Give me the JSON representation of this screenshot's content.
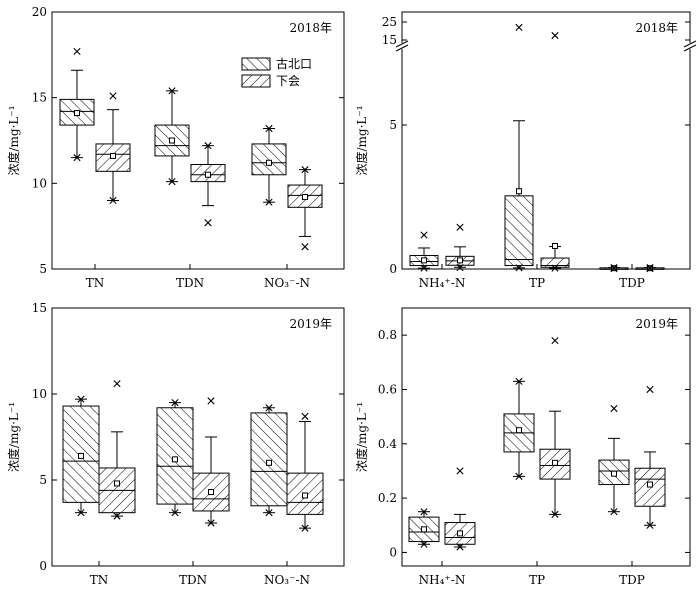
{
  "legend": {
    "items": [
      {
        "label": "古北口",
        "pattern": "hatch-a"
      },
      {
        "label": "下会",
        "pattern": "hatch-b"
      }
    ]
  },
  "chart_data": [
    {
      "type": "box",
      "panel": "top-left",
      "title": "2018年",
      "ylabel": "浓度/mg·L⁻¹",
      "ylim": [
        5,
        20
      ],
      "yticks": [
        "5",
        "10",
        "15",
        "20"
      ],
      "categories": [
        "TN",
        "TDN",
        "NO₃⁻-N"
      ],
      "series": [
        {
          "name": "古北口",
          "pattern": "hatch-a",
          "boxes": [
            {
              "min": 11.5,
              "q1": 13.4,
              "median": 14.2,
              "q3": 14.9,
              "max": 16.6,
              "mean": 14.1,
              "extremes": [
                11.5,
                17.7
              ]
            },
            {
              "min": 10.1,
              "q1": 11.6,
              "median": 12.2,
              "q3": 13.4,
              "max": 15.4,
              "mean": 12.5,
              "extremes": [
                10.1,
                15.4
              ]
            },
            {
              "min": 8.9,
              "q1": 10.5,
              "median": 11.2,
              "q3": 12.3,
              "max": 13.2,
              "mean": 11.2,
              "extremes": [
                8.9,
                13.2
              ]
            }
          ]
        },
        {
          "name": "下会",
          "pattern": "hatch-b",
          "boxes": [
            {
              "min": 9.0,
              "q1": 10.7,
              "median": 11.7,
              "q3": 12.3,
              "max": 14.3,
              "mean": 11.6,
              "extremes": [
                9.0,
                15.1
              ]
            },
            {
              "min": 8.7,
              "q1": 10.1,
              "median": 10.5,
              "q3": 11.1,
              "max": 12.2,
              "mean": 10.5,
              "extremes": [
                7.7,
                12.2
              ]
            },
            {
              "min": 6.9,
              "q1": 8.6,
              "median": 9.3,
              "q3": 9.9,
              "max": 10.8,
              "mean": 9.2,
              "extremes": [
                6.3,
                10.8
              ]
            }
          ]
        }
      ]
    },
    {
      "type": "box",
      "panel": "top-right",
      "title": "2018年",
      "ylabel": "浓度/mg·L⁻¹",
      "ylim": [
        0,
        25
      ],
      "axis_break": [
        5,
        15
      ],
      "yticks": [
        "0",
        "5",
        "15",
        "25"
      ],
      "categories": [
        "NH₄⁺-N",
        "TP",
        "TDP"
      ],
      "series": [
        {
          "name": "古北口",
          "pattern": "hatch-a",
          "boxes": [
            {
              "min": 0.03,
              "q1": 0.12,
              "median": 0.26,
              "q3": 0.47,
              "max": 0.73,
              "mean": 0.3,
              "extremes": [
                0.03,
                1.18
              ]
            },
            {
              "min": 0.04,
              "q1": 0.12,
              "median": 0.33,
              "q3": 2.54,
              "max": 5.5,
              "mean": 2.7,
              "extremes": [
                0.04,
                22.0
              ]
            },
            {
              "min": 0.01,
              "q1": 0.02,
              "median": 0.03,
              "q3": 0.04,
              "max": 0.05,
              "mean": 0.03,
              "extremes": [
                0.01,
                0.05
              ]
            }
          ]
        },
        {
          "name": "下会",
          "pattern": "hatch-b",
          "boxes": [
            {
              "min": 0.06,
              "q1": 0.13,
              "median": 0.28,
              "q3": 0.44,
              "max": 0.77,
              "mean": 0.3,
              "extremes": [
                0.05,
                1.45
              ]
            },
            {
              "min": 0.03,
              "q1": 0.06,
              "median": 0.12,
              "q3": 0.38,
              "max": 0.78,
              "mean": 0.8,
              "extremes": [
                0.03,
                17.5
              ]
            },
            {
              "min": 0.01,
              "q1": 0.02,
              "median": 0.03,
              "q3": 0.04,
              "max": 0.05,
              "mean": 0.03,
              "extremes": [
                0.01,
                0.05
              ]
            }
          ]
        }
      ]
    },
    {
      "type": "box",
      "panel": "bottom-left",
      "title": "2019年",
      "ylabel": "浓度/mg·L⁻¹",
      "ylim": [
        0,
        15
      ],
      "yticks": [
        "0",
        "5",
        "10",
        "15"
      ],
      "categories": [
        "TN",
        "TDN",
        "NO₃⁻-N"
      ],
      "series": [
        {
          "name": "古北口",
          "pattern": "hatch-a",
          "boxes": [
            {
              "min": 3.1,
              "q1": 3.7,
              "median": 6.1,
              "q3": 9.3,
              "max": 9.7,
              "mean": 6.4,
              "extremes": [
                3.1,
                9.7
              ]
            },
            {
              "min": 3.1,
              "q1": 3.6,
              "median": 5.8,
              "q3": 9.2,
              "max": 9.5,
              "mean": 6.2,
              "extremes": [
                3.1,
                9.5
              ]
            },
            {
              "min": 3.1,
              "q1": 3.5,
              "median": 5.5,
              "q3": 8.9,
              "max": 9.2,
              "mean": 6.0,
              "extremes": [
                3.1,
                9.2
              ]
            }
          ]
        },
        {
          "name": "下会",
          "pattern": "hatch-b",
          "boxes": [
            {
              "min": 2.9,
              "q1": 3.1,
              "median": 4.4,
              "q3": 5.7,
              "max": 7.8,
              "mean": 4.8,
              "extremes": [
                2.9,
                10.6
              ]
            },
            {
              "min": 2.5,
              "q1": 3.2,
              "median": 3.9,
              "q3": 5.4,
              "max": 7.5,
              "mean": 4.3,
              "extremes": [
                2.5,
                9.6
              ]
            },
            {
              "min": 2.2,
              "q1": 3.0,
              "median": 3.7,
              "q3": 5.4,
              "max": 8.4,
              "mean": 4.1,
              "extremes": [
                2.2,
                8.7
              ]
            }
          ]
        }
      ]
    },
    {
      "type": "box",
      "panel": "bottom-right",
      "title": "2019年",
      "ylabel": "浓度/mg·L⁻¹",
      "ylim": [
        -0.05,
        0.9
      ],
      "yticks": [
        "0",
        "0.2",
        "0.4",
        "0.6",
        "0.8"
      ],
      "categories": [
        "NH₄⁺-N",
        "TP",
        "TDP"
      ],
      "series": [
        {
          "name": "古北口",
          "pattern": "hatch-a",
          "boxes": [
            {
              "min": 0.03,
              "q1": 0.04,
              "median": 0.075,
              "q3": 0.13,
              "max": 0.15,
              "mean": 0.085,
              "extremes": [
                0.03,
                0.15
              ]
            },
            {
              "min": 0.28,
              "q1": 0.37,
              "median": 0.44,
              "q3": 0.51,
              "max": 0.63,
              "mean": 0.45,
              "extremes": [
                0.28,
                0.63
              ]
            },
            {
              "min": 0.15,
              "q1": 0.25,
              "median": 0.3,
              "q3": 0.34,
              "max": 0.42,
              "mean": 0.29,
              "extremes": [
                0.15,
                0.53
              ]
            }
          ]
        },
        {
          "name": "下会",
          "pattern": "hatch-b",
          "boxes": [
            {
              "min": 0.02,
              "q1": 0.03,
              "median": 0.055,
              "q3": 0.11,
              "max": 0.14,
              "mean": 0.07,
              "extremes": [
                0.02,
                0.3
              ]
            },
            {
              "min": 0.14,
              "q1": 0.27,
              "median": 0.32,
              "q3": 0.38,
              "max": 0.52,
              "mean": 0.33,
              "extremes": [
                0.14,
                0.78
              ]
            },
            {
              "min": 0.1,
              "q1": 0.17,
              "median": 0.27,
              "q3": 0.31,
              "max": 0.37,
              "mean": 0.25,
              "extremes": [
                0.1,
                0.6
              ]
            }
          ]
        }
      ]
    }
  ]
}
